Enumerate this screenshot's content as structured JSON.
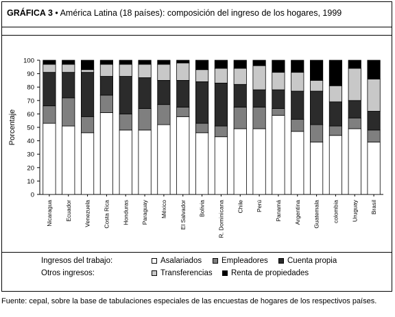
{
  "title": {
    "prefix": "GRÁFICA 3",
    "bullet": "•",
    "text": "América Latina (18 países): composición del ingreso de los hogares, 1999"
  },
  "legend": {
    "work_label": "Ingresos del trabajo:",
    "other_label": "Otros ingresos:",
    "items": [
      {
        "name": "Asalariados",
        "color": "#ffffff"
      },
      {
        "name": "Empleadores",
        "color": "#7f7f7f"
      },
      {
        "name": "Cuenta propia",
        "color": "#2b2b2b"
      },
      {
        "name": "Transferencias",
        "color": "#c8c8c8"
      },
      {
        "name": "Renta de propiedades",
        "color": "#000000"
      }
    ]
  },
  "source": "Fuente: cepal, sobre la base de tabulaciones especiales de las encuestas de hogares de los respectivos países.",
  "chart_data": {
    "type": "bar",
    "stacked": true,
    "title": "",
    "xlabel": "",
    "ylabel": "Porcentaje",
    "ylim": [
      0,
      100
    ],
    "yticks": [
      0,
      10,
      20,
      30,
      40,
      50,
      60,
      70,
      80,
      90,
      100
    ],
    "categories": [
      "Nicaragua",
      "Ecuador",
      "Venezuela",
      "Costa Rica",
      "Honduras",
      "Paraguay",
      "México",
      "El Salvador",
      "Bolivia",
      "R. Dominicana",
      "Chile",
      "Perú",
      "Panamá",
      "Argentina",
      "Guatemala",
      "colombia",
      "Uruguay",
      "Brasil"
    ],
    "series": [
      {
        "name": "Asalariados",
        "color": "#ffffff",
        "values": [
          53,
          51,
          46,
          61,
          48,
          48,
          52,
          58,
          46,
          43,
          49,
          49,
          59,
          47,
          39,
          44,
          49,
          39
        ]
      },
      {
        "name": "Empleadores",
        "color": "#7f7f7f",
        "values": [
          13,
          21,
          12,
          13,
          12,
          16,
          15,
          7,
          7,
          8,
          16,
          16,
          5,
          9,
          13,
          7,
          8,
          9
        ]
      },
      {
        "name": "Cuenta propia",
        "color": "#2b2b2b",
        "values": [
          25,
          19,
          33,
          14,
          28,
          23,
          18,
          20,
          31,
          32,
          17,
          13,
          14,
          21,
          25,
          18,
          13,
          14
        ]
      },
      {
        "name": "Transferencias",
        "color": "#c8c8c8",
        "values": [
          6,
          6,
          2,
          9,
          9,
          10,
          12,
          13,
          9,
          11,
          12,
          18,
          13,
          14,
          8,
          12,
          24,
          24
        ]
      },
      {
        "name": "Renta de propiedades",
        "color": "#000000",
        "values": [
          3,
          3,
          7,
          3,
          3,
          3,
          3,
          2,
          7,
          6,
          6,
          4,
          9,
          9,
          15,
          19,
          6,
          14
        ]
      }
    ],
    "grid": false,
    "legend_position": "bottom"
  }
}
